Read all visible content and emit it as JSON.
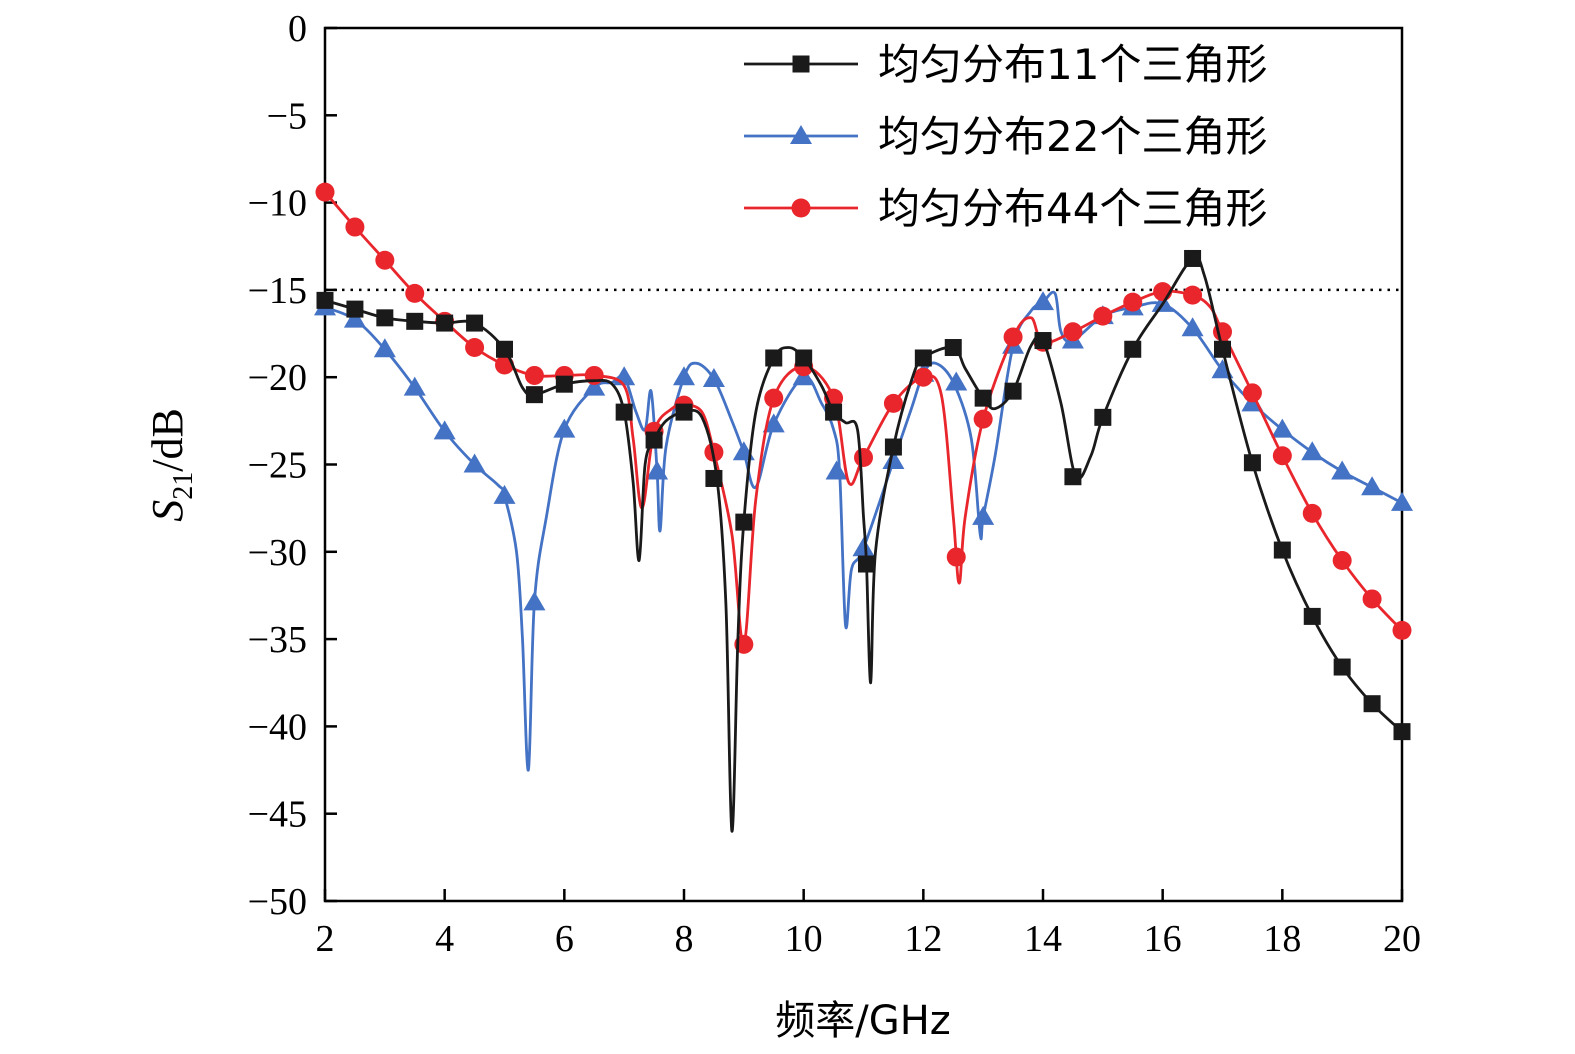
{
  "chart_data": {
    "type": "line",
    "title": "",
    "xlabel": "频率/GHz",
    "ylabel_main": "S",
    "ylabel_sub": "21",
    "ylabel_unit": "/dB",
    "xlim": [
      2,
      20
    ],
    "ylim": [
      -50,
      0
    ],
    "xticks": [
      2,
      4,
      6,
      8,
      10,
      12,
      14,
      16,
      18,
      20
    ],
    "yticks": [
      0,
      -5,
      -10,
      -15,
      -20,
      -25,
      -30,
      -35,
      -40,
      -45,
      -50
    ],
    "xtick_labels": [
      "2",
      "4",
      "6",
      "8",
      "10",
      "12",
      "14",
      "16",
      "18",
      "20"
    ],
    "ytick_labels": [
      "0",
      "−5",
      "−10",
      "−15",
      "−20",
      "−25",
      "−30",
      "−35",
      "−40",
      "−45",
      "−50"
    ],
    "reference_line": {
      "y": -15,
      "style": "dotted",
      "color": "#000000"
    },
    "grid": false,
    "legend_position": "top-right",
    "series": [
      {
        "name": "均匀分布11个三角形",
        "color": "#1a1a1a",
        "marker": "square",
        "curve": [
          [
            2,
            -15.6
          ],
          [
            2.5,
            -16.1
          ],
          [
            3,
            -16.6
          ],
          [
            3.5,
            -16.8
          ],
          [
            4,
            -16.9
          ],
          [
            4.5,
            -16.9
          ],
          [
            5,
            -18.4
          ],
          [
            5.3,
            -20.6
          ],
          [
            5.5,
            -21
          ],
          [
            6,
            -20.4
          ],
          [
            6.5,
            -20.2
          ],
          [
            6.8,
            -20.4
          ],
          [
            7,
            -22
          ],
          [
            7.15,
            -26
          ],
          [
            7.25,
            -30.5
          ],
          [
            7.35,
            -25
          ],
          [
            7.5,
            -23.6
          ],
          [
            7.7,
            -22.5
          ],
          [
            8,
            -22
          ],
          [
            8.3,
            -22.3
          ],
          [
            8.55,
            -25.8
          ],
          [
            8.7,
            -33
          ],
          [
            8.8,
            -46
          ],
          [
            8.9,
            -35
          ],
          [
            9,
            -28.3
          ],
          [
            9.2,
            -22
          ],
          [
            9.5,
            -18.9
          ],
          [
            9.75,
            -18.3
          ],
          [
            10,
            -18.9
          ],
          [
            10.3,
            -20.5
          ],
          [
            10.5,
            -22
          ],
          [
            10.7,
            -22.6
          ],
          [
            10.9,
            -23
          ],
          [
            11,
            -28
          ],
          [
            11.05,
            -30.7
          ],
          [
            11.12,
            -37.5
          ],
          [
            11.2,
            -30
          ],
          [
            11.5,
            -24
          ],
          [
            11.8,
            -20.2
          ],
          [
            12,
            -18.9
          ],
          [
            12.5,
            -18.3
          ],
          [
            12.7,
            -19.5
          ],
          [
            13,
            -21.2
          ],
          [
            13.2,
            -21.8
          ],
          [
            13.5,
            -20.8
          ],
          [
            13.8,
            -18.2
          ],
          [
            14,
            -17.9
          ],
          [
            14.3,
            -21.5
          ],
          [
            14.55,
            -25.7
          ],
          [
            14.8,
            -24.5
          ],
          [
            15,
            -22.3
          ],
          [
            15.5,
            -18.4
          ],
          [
            16,
            -15.8
          ],
          [
            16.5,
            -13.2
          ],
          [
            16.7,
            -14.2
          ],
          [
            17,
            -18.4
          ],
          [
            17.5,
            -24.9
          ],
          [
            18,
            -29.9
          ],
          [
            18.5,
            -33.7
          ],
          [
            19,
            -36.6
          ],
          [
            19.5,
            -38.7
          ],
          [
            20,
            -40.3
          ]
        ],
        "markers": [
          [
            2,
            -15.6
          ],
          [
            2.5,
            -16.1
          ],
          [
            3,
            -16.6
          ],
          [
            3.5,
            -16.8
          ],
          [
            4,
            -16.9
          ],
          [
            4.5,
            -16.9
          ],
          [
            5,
            -18.4
          ],
          [
            5.5,
            -21
          ],
          [
            6,
            -20.4
          ],
          [
            7,
            -22
          ],
          [
            7.5,
            -23.6
          ],
          [
            8,
            -22
          ],
          [
            8.5,
            -25.8
          ],
          [
            9,
            -28.3
          ],
          [
            9.5,
            -18.9
          ],
          [
            10,
            -18.9
          ],
          [
            10.5,
            -22
          ],
          [
            11.05,
            -30.7
          ],
          [
            11.5,
            -24
          ],
          [
            12,
            -18.9
          ],
          [
            12.5,
            -18.3
          ],
          [
            13,
            -21.2
          ],
          [
            13.5,
            -20.8
          ],
          [
            14,
            -17.9
          ],
          [
            14.5,
            -25.7
          ],
          [
            15,
            -22.3
          ],
          [
            15.5,
            -18.4
          ],
          [
            16.5,
            -13.2
          ],
          [
            17,
            -18.4
          ],
          [
            17.5,
            -24.9
          ],
          [
            18,
            -29.9
          ],
          [
            18.5,
            -33.7
          ],
          [
            19,
            -36.6
          ],
          [
            19.5,
            -38.7
          ],
          [
            20,
            -40.3
          ]
        ]
      },
      {
        "name": "均匀分布22个三角形",
        "color": "#4472c4",
        "marker": "triangle",
        "curve": [
          [
            2,
            -16
          ],
          [
            2.5,
            -16.7
          ],
          [
            3,
            -18.4
          ],
          [
            3.5,
            -20.6
          ],
          [
            4,
            -23.1
          ],
          [
            4.5,
            -25
          ],
          [
            4.9,
            -26.2
          ],
          [
            5,
            -26.8
          ],
          [
            5.2,
            -30
          ],
          [
            5.3,
            -35
          ],
          [
            5.4,
            -42.5
          ],
          [
            5.5,
            -32.9
          ],
          [
            5.7,
            -28
          ],
          [
            6,
            -23
          ],
          [
            6.5,
            -20.6
          ],
          [
            6.8,
            -20.3
          ],
          [
            7,
            -20
          ],
          [
            7.2,
            -22
          ],
          [
            7.35,
            -23
          ],
          [
            7.45,
            -20.8
          ],
          [
            7.55,
            -25.4
          ],
          [
            7.6,
            -28.8
          ],
          [
            7.7,
            -24
          ],
          [
            8,
            -20
          ],
          [
            8.2,
            -19.2
          ],
          [
            8.5,
            -20.1
          ],
          [
            8.8,
            -22.5
          ],
          [
            9,
            -24.3
          ],
          [
            9.2,
            -26.3
          ],
          [
            9.5,
            -22.7
          ],
          [
            10,
            -20
          ],
          [
            10.3,
            -21.5
          ],
          [
            10.5,
            -23
          ],
          [
            10.6,
            -25.4
          ],
          [
            10.7,
            -34.2
          ],
          [
            10.8,
            -31
          ],
          [
            11,
            -29.8
          ],
          [
            11.5,
            -24.8
          ],
          [
            11.8,
            -21.8
          ],
          [
            12,
            -19.8
          ],
          [
            12.2,
            -19.2
          ],
          [
            12.5,
            -20.3
          ],
          [
            12.8,
            -23.5
          ],
          [
            12.95,
            -29
          ],
          [
            13,
            -28
          ],
          [
            13.2,
            -24.5
          ],
          [
            13.5,
            -18.2
          ],
          [
            13.8,
            -16.2
          ],
          [
            14,
            -15.7
          ],
          [
            14.2,
            -15.2
          ],
          [
            14.3,
            -17.4
          ],
          [
            14.5,
            -17.9
          ],
          [
            15,
            -16.5
          ],
          [
            15.5,
            -16
          ],
          [
            16,
            -15.8
          ],
          [
            16.5,
            -17.2
          ],
          [
            17,
            -19.6
          ],
          [
            17.5,
            -21.5
          ],
          [
            18,
            -23
          ],
          [
            18.5,
            -24.3
          ],
          [
            19,
            -25.4
          ],
          [
            19.5,
            -26.3
          ],
          [
            20,
            -27.2
          ]
        ],
        "markers": [
          [
            2,
            -16
          ],
          [
            2.5,
            -16.7
          ],
          [
            3,
            -18.4
          ],
          [
            3.5,
            -20.6
          ],
          [
            4,
            -23.1
          ],
          [
            4.5,
            -25
          ],
          [
            5,
            -26.8
          ],
          [
            5.5,
            -32.9
          ],
          [
            6,
            -23
          ],
          [
            6.5,
            -20.6
          ],
          [
            7,
            -20
          ],
          [
            7.55,
            -25.4
          ],
          [
            8,
            -20
          ],
          [
            8.5,
            -20.1
          ],
          [
            9,
            -24.3
          ],
          [
            9.5,
            -22.7
          ],
          [
            10,
            -20
          ],
          [
            10.55,
            -25.4
          ],
          [
            11,
            -29.8
          ],
          [
            11.5,
            -24.8
          ],
          [
            12,
            -19.8
          ],
          [
            12.55,
            -20.3
          ],
          [
            13,
            -28
          ],
          [
            13.5,
            -18.2
          ],
          [
            14,
            -15.7
          ],
          [
            14.5,
            -17.9
          ],
          [
            15,
            -16.5
          ],
          [
            15.5,
            -16
          ],
          [
            16,
            -15.8
          ],
          [
            16.5,
            -17.2
          ],
          [
            17,
            -19.6
          ],
          [
            17.5,
            -21.5
          ],
          [
            18,
            -23
          ],
          [
            18.5,
            -24.3
          ],
          [
            19,
            -25.4
          ],
          [
            19.5,
            -26.3
          ],
          [
            20,
            -27.2
          ]
        ]
      },
      {
        "name": "均匀分布44个三角形",
        "color": "#e8262c",
        "marker": "circle",
        "curve": [
          [
            2,
            -9.4
          ],
          [
            2.5,
            -11.4
          ],
          [
            3,
            -13.3
          ],
          [
            3.5,
            -15.2
          ],
          [
            4,
            -16.8
          ],
          [
            4.5,
            -18.3
          ],
          [
            5,
            -19.3
          ],
          [
            5.5,
            -19.9
          ],
          [
            6,
            -19.9
          ],
          [
            6.5,
            -19.9
          ],
          [
            7,
            -20.5
          ],
          [
            7.15,
            -23.5
          ],
          [
            7.3,
            -27.5
          ],
          [
            7.5,
            -23.1
          ],
          [
            7.8,
            -21.8
          ],
          [
            8,
            -21.6
          ],
          [
            8.3,
            -22
          ],
          [
            8.5,
            -24.3
          ],
          [
            8.8,
            -29
          ],
          [
            9,
            -35.3
          ],
          [
            9.2,
            -27
          ],
          [
            9.5,
            -21.2
          ],
          [
            10,
            -19.4
          ],
          [
            10.5,
            -21.2
          ],
          [
            10.75,
            -26
          ],
          [
            11,
            -24.6
          ],
          [
            11.5,
            -21.5
          ],
          [
            12,
            -20
          ],
          [
            12.3,
            -21
          ],
          [
            12.5,
            -28
          ],
          [
            12.6,
            -31.8
          ],
          [
            12.7,
            -28
          ],
          [
            13,
            -22.4
          ],
          [
            13.5,
            -17.7
          ],
          [
            13.8,
            -16.6
          ],
          [
            14,
            -18
          ],
          [
            14.5,
            -17.4
          ],
          [
            15,
            -16.5
          ],
          [
            15.5,
            -15.7
          ],
          [
            16,
            -15.1
          ],
          [
            16.5,
            -15.3
          ],
          [
            16.8,
            -16
          ],
          [
            17,
            -17.4
          ],
          [
            17.5,
            -20.9
          ],
          [
            18,
            -24.5
          ],
          [
            18.5,
            -27.8
          ],
          [
            19,
            -30.5
          ],
          [
            19.5,
            -32.7
          ],
          [
            20,
            -34.5
          ]
        ],
        "markers": [
          [
            2,
            -9.4
          ],
          [
            2.5,
            -11.4
          ],
          [
            3,
            -13.3
          ],
          [
            3.5,
            -15.2
          ],
          [
            4,
            -16.8
          ],
          [
            4.5,
            -18.3
          ],
          [
            5,
            -19.3
          ],
          [
            5.5,
            -19.9
          ],
          [
            6,
            -19.9
          ],
          [
            6.5,
            -19.9
          ],
          [
            7.5,
            -23.1
          ],
          [
            8,
            -21.6
          ],
          [
            8.5,
            -24.3
          ],
          [
            9,
            -35.3
          ],
          [
            9.5,
            -21.2
          ],
          [
            10,
            -19.4
          ],
          [
            10.5,
            -21.2
          ],
          [
            11,
            -24.6
          ],
          [
            11.5,
            -21.5
          ],
          [
            12,
            -20
          ],
          [
            12.55,
            -30.3
          ],
          [
            13,
            -22.4
          ],
          [
            13.5,
            -17.7
          ],
          [
            14,
            -18
          ],
          [
            14.5,
            -17.4
          ],
          [
            15,
            -16.5
          ],
          [
            15.5,
            -15.7
          ],
          [
            16,
            -15.1
          ],
          [
            16.5,
            -15.3
          ],
          [
            17,
            -17.4
          ],
          [
            17.5,
            -20.9
          ],
          [
            18,
            -24.5
          ],
          [
            18.5,
            -27.8
          ],
          [
            19,
            -30.5
          ],
          [
            19.5,
            -32.7
          ],
          [
            20,
            -34.5
          ]
        ]
      }
    ]
  }
}
